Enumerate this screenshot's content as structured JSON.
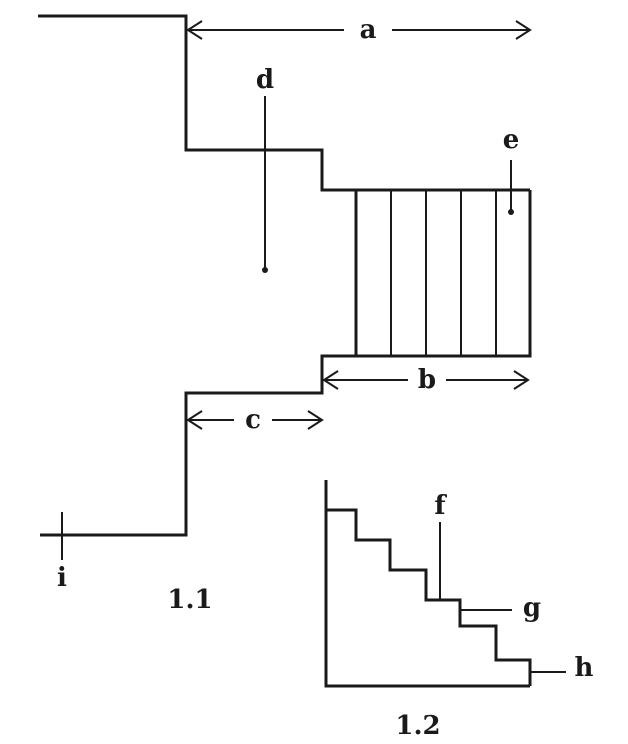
{
  "figure_1": {
    "caption": "1.1",
    "labels": {
      "a": "a",
      "b": "b",
      "c": "c",
      "d": "d",
      "e": "e",
      "i": "i"
    }
  },
  "figure_2": {
    "caption": "1.2",
    "labels": {
      "f": "f",
      "g": "g",
      "h": "h"
    }
  }
}
